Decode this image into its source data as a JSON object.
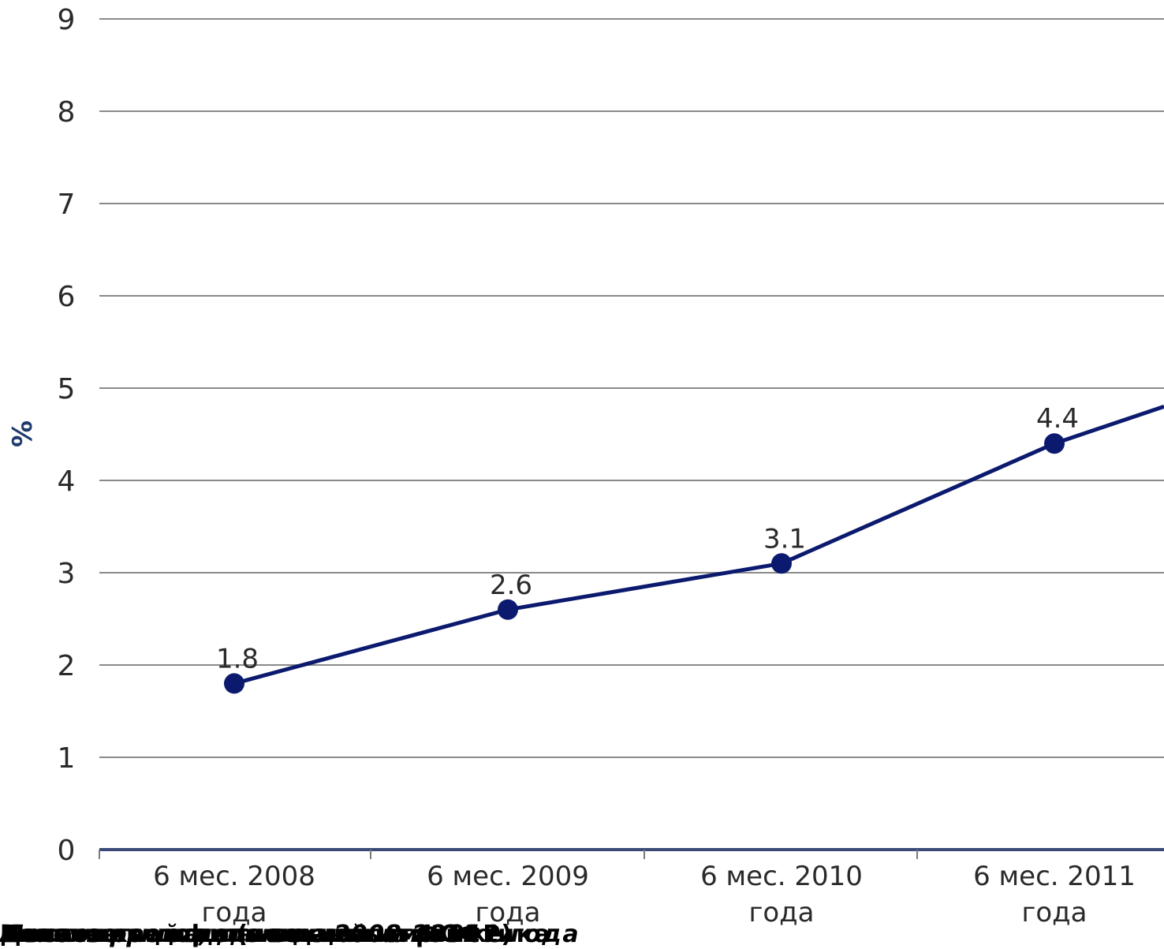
{
  "chart_data": {
    "type": "line",
    "title": "",
    "xlabel": "",
    "ylabel": "%",
    "ylim": [
      0,
      9
    ],
    "yticks": [
      0,
      1,
      2,
      3,
      4,
      5,
      6,
      7,
      8,
      9
    ],
    "grid": true,
    "categories": [
      [
        "6 мес. 2008",
        "года"
      ],
      [
        "6 мес. 2009",
        "года"
      ],
      [
        "6 мес. 2010",
        "года"
      ],
      [
        "6 мес. 2011",
        "года"
      ]
    ],
    "series": [
      {
        "values": [
          1.8,
          2.6,
          3.1,
          4.4
        ],
        "data_labels": [
          "1.8",
          "2.6",
          "3.1",
          "4.4"
        ],
        "color": "#0b1a6e",
        "continues_right_to": 4.8
      }
    ]
  },
  "footer": {
    "overlapping_lines": [
      "Количество и доля секций на рынке",
      "Анализ рынка, данные 2008-2011",
      "Динамика доли (по данным ФСФР)",
      "Место в рейтинге по итогам 2011 года",
      "Источник: официальная статистика"
    ]
  }
}
